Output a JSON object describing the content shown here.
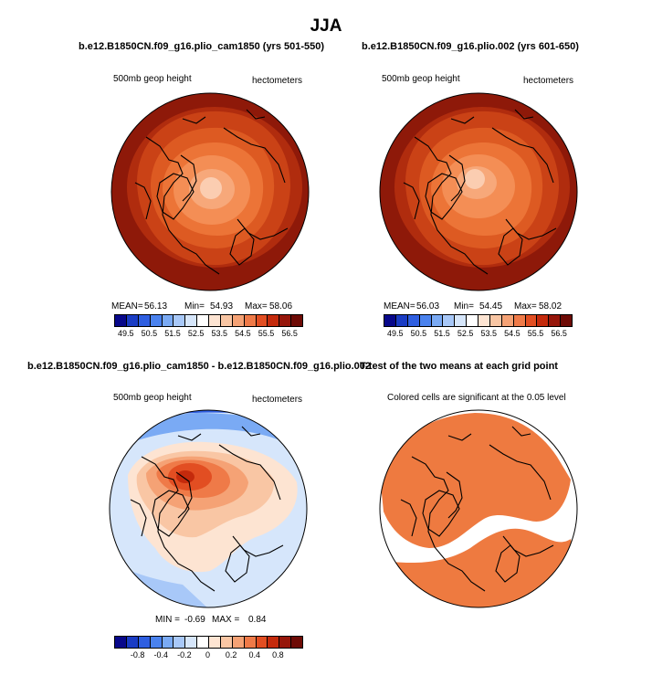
{
  "figure": {
    "title": "JJA",
    "top_left": {
      "title": "b.e12.B1850CN.f09_g16.plio_cam1850 (yrs 501-550)",
      "left_label": "500mb geop height",
      "right_label": "hectometers",
      "mean_label": "MEAN=",
      "mean_value": "56.13",
      "min_label": "Min=",
      "min_value": "54.93",
      "max_label": "Max=",
      "max_value": "58.06"
    },
    "top_right": {
      "title": "b.e12.B1850CN.f09_g16.plio.002 (yrs 601-650)",
      "left_label": "500mb geop height",
      "right_label": "hectometers",
      "mean_label": "MEAN=",
      "mean_value": "56.03",
      "min_label": "Min=",
      "min_value": "54.45",
      "max_label": "Max=",
      "max_value": "58.02"
    },
    "bottom_left": {
      "title": "b.e12.B1850CN.f09_g16.plio_cam1850 - b.e12.B1850CN.f09_g16.plio.002",
      "left_label": "500mb geop height",
      "right_label": "hectometers",
      "min_label": "MIN =",
      "min_value": "-0.69",
      "max_label": "MAX =",
      "max_value": "0.84"
    },
    "bottom_right": {
      "title": "T-test of the two means at each grid point",
      "subtitle": "Colored cells are significant at the 0.05 level"
    }
  },
  "colorbars": {
    "height_levels": [
      "49.5",
      "50.5",
      "51.5",
      "52.5",
      "53.5",
      "54.5",
      "55.5",
      "56.5"
    ],
    "diff_levels": [
      "-0.8",
      "-0.4",
      "-0.2",
      "0",
      "0.2",
      "0.4",
      "0.8"
    ],
    "colors": [
      "#08088a",
      "#1a3cc4",
      "#2e5ee0",
      "#4a82ee",
      "#7aaaf4",
      "#a8c8f8",
      "#d6e6fb",
      "#ffffff",
      "#fde4d2",
      "#f9c6a4",
      "#f5a275",
      "#ef7a48",
      "#e24e22",
      "#c42a0c",
      "#96160a",
      "#6e0b06"
    ]
  },
  "map_colors": {
    "outer": "#8e1909",
    "band2": "#b02c0e",
    "band3": "#ca4216",
    "band4": "#dd5a22",
    "band5": "#ec7437",
    "band6": "#f48e55",
    "band7": "#f7a87a",
    "core": "#fbcdb1",
    "sig": "#ee7a40"
  }
}
